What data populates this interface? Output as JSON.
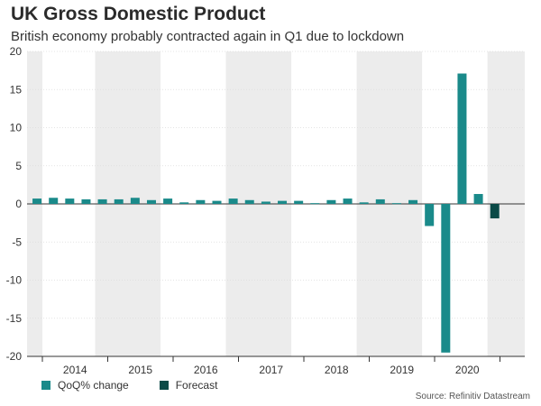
{
  "title": "UK Gross Domestic Product",
  "subtitle": "British economy probably contracted again in Q1 due to lockdown",
  "source": "Source: Refinitiv Datastream",
  "colors": {
    "qoq": "#1a8a8a",
    "forecast": "#0b4a47",
    "band": "#ececec"
  },
  "chart_data": {
    "type": "bar",
    "ylim": [
      -20,
      20
    ],
    "yticks": [
      "-20",
      "-15",
      "-10",
      "-5",
      "0",
      "5",
      "10",
      "15",
      "20"
    ],
    "years": [
      "2014",
      "2015",
      "2016",
      "2017",
      "2018",
      "2019",
      "2020"
    ],
    "series": [
      {
        "name": "QoQ% change",
        "x": [
          "2014 Q1",
          "2014 Q2",
          "2014 Q3",
          "2014 Q4",
          "2015 Q1",
          "2015 Q2",
          "2015 Q3",
          "2015 Q4",
          "2016 Q1",
          "2016 Q2",
          "2016 Q3",
          "2016 Q4",
          "2017 Q1",
          "2017 Q2",
          "2017 Q3",
          "2017 Q4",
          "2018 Q1",
          "2018 Q2",
          "2018 Q3",
          "2018 Q4",
          "2019 Q1",
          "2019 Q2",
          "2019 Q3",
          "2019 Q4",
          "2020 Q1",
          "2020 Q2",
          "2020 Q3",
          "2020 Q4"
        ],
        "values": [
          0.7,
          0.8,
          0.7,
          0.6,
          0.6,
          0.6,
          0.8,
          0.5,
          0.7,
          0.2,
          0.5,
          0.4,
          0.7,
          0.5,
          0.3,
          0.4,
          0.4,
          0.1,
          0.5,
          0.7,
          0.2,
          0.6,
          0.1,
          0.5,
          -2.9,
          -19.5,
          17.1,
          1.3
        ]
      },
      {
        "name": "Forecast",
        "x": [
          "2021 Q1"
        ],
        "values": [
          -1.9
        ]
      }
    ],
    "legend": [
      "QoQ% change",
      "Forecast"
    ],
    "grid": true
  }
}
